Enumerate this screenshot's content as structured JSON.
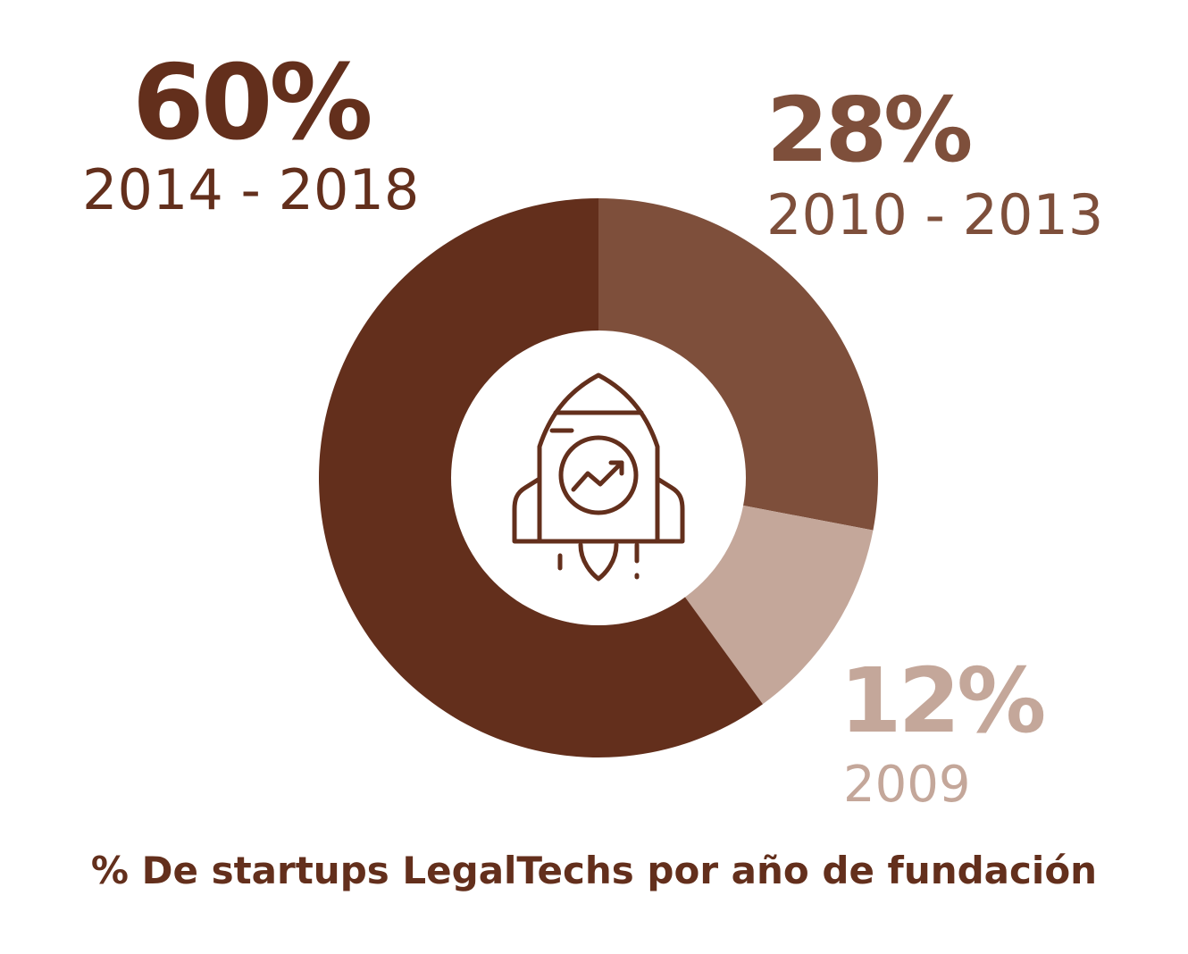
{
  "chart_data": {
    "type": "pie",
    "donut": true,
    "title": "% De startups LegalTechs por año de fundación",
    "slices": [
      {
        "label": "2014 - 2018",
        "value": 60,
        "display": "60%",
        "color": "#632f1c"
      },
      {
        "label": "2010 - 2013",
        "value": 28,
        "display": "28%",
        "color": "#7e4f3b"
      },
      {
        "label": "2009",
        "value": 12,
        "display": "12%",
        "color": "#c4a79a"
      }
    ],
    "center_icon": "rocket-growth-icon"
  },
  "colors": {
    "title": "#632f1c",
    "background": "#ffffff",
    "icon": "#632f1c"
  }
}
